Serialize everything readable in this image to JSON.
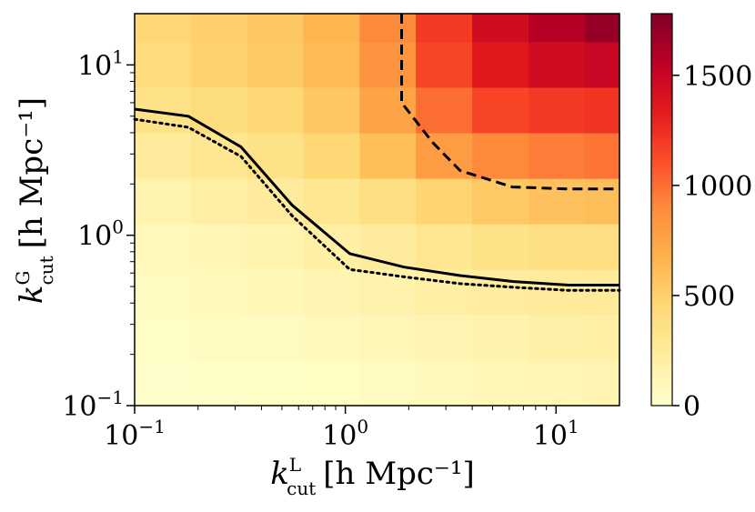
{
  "chart_data": {
    "type": "heatmap",
    "title": "",
    "xlabel": {
      "main": "k",
      "sup": "L",
      "sub": "cut",
      "unit": "[h Mpc⁻¹]"
    },
    "ylabel": {
      "main": "k",
      "sup": "G",
      "sub": "cut",
      "unit": "[h Mpc⁻¹]"
    },
    "xscale": "log",
    "yscale": "log",
    "xlim": [
      0.1,
      20
    ],
    "ylim": [
      0.1,
      20
    ],
    "x_ticks": [
      {
        "value": 0.1,
        "base": "10",
        "exp": "−1"
      },
      {
        "value": 1,
        "base": "10",
        "exp": "0"
      },
      {
        "value": 10,
        "base": "10",
        "exp": "1"
      }
    ],
    "y_ticks": [
      {
        "value": 0.1,
        "base": "10",
        "exp": "−1"
      },
      {
        "value": 1,
        "base": "10",
        "exp": "0"
      },
      {
        "value": 10,
        "base": "10",
        "exp": "1"
      }
    ],
    "x_edges": [
      0.1,
      0.185,
      0.342,
      0.632,
      1.17,
      2.16,
      4.0,
      7.4,
      13.7,
      20
    ],
    "y_edges": [
      0.1,
      0.185,
      0.342,
      0.632,
      1.17,
      2.16,
      4.0,
      7.4,
      13.7,
      20
    ],
    "z_rows_bottom_to_top": [
      [
        10,
        20,
        30,
        40,
        60,
        80,
        100,
        120,
        130
      ],
      [
        30,
        50,
        60,
        80,
        100,
        130,
        160,
        180,
        190
      ],
      [
        60,
        80,
        100,
        130,
        160,
        200,
        230,
        250,
        260
      ],
      [
        90,
        120,
        150,
        190,
        240,
        300,
        350,
        380,
        390
      ],
      [
        150,
        190,
        240,
        300,
        380,
        470,
        540,
        580,
        600
      ],
      [
        250,
        300,
        350,
        450,
        600,
        800,
        900,
        950,
        980
      ],
      [
        350,
        400,
        450,
        550,
        750,
        1000,
        1150,
        1200,
        1220
      ],
      [
        420,
        480,
        530,
        620,
        850,
        1150,
        1350,
        1450,
        1500
      ],
      [
        450,
        500,
        550,
        650,
        900,
        1200,
        1450,
        1580,
        1700
      ]
    ],
    "colorbar": {
      "range": [
        0,
        1780
      ],
      "ticks": [
        0,
        500,
        1000,
        1500
      ],
      "colormap": "YlOrRd",
      "stops": [
        "#ffffcc",
        "#ffeda0",
        "#fed976",
        "#feb24c",
        "#fd8d3c",
        "#fc4e2a",
        "#e31a1c",
        "#bd0026",
        "#800026"
      ]
    },
    "contours": [
      {
        "name": "solid",
        "style": "solid",
        "x": [
          0.1,
          0.18,
          0.32,
          0.56,
          1.05,
          1.9,
          3.5,
          6.3,
          11.5,
          20
        ],
        "y": [
          5.5,
          5.0,
          3.3,
          1.5,
          0.78,
          0.65,
          0.58,
          0.535,
          0.51,
          0.51
        ]
      },
      {
        "name": "dotted",
        "style": "dotted",
        "x": [
          0.1,
          0.18,
          0.32,
          0.56,
          1.05,
          1.9,
          3.5,
          6.3,
          11.5,
          20
        ],
        "y": [
          4.8,
          4.3,
          2.9,
          1.3,
          0.63,
          0.57,
          0.52,
          0.495,
          0.475,
          0.475
        ]
      },
      {
        "name": "dashed",
        "style": "dashed",
        "x": [
          1.85,
          1.85,
          2.6,
          3.5,
          6.2,
          11.5,
          20
        ],
        "y": [
          20,
          6.0,
          3.5,
          2.4,
          1.92,
          1.87,
          1.87
        ]
      }
    ]
  }
}
